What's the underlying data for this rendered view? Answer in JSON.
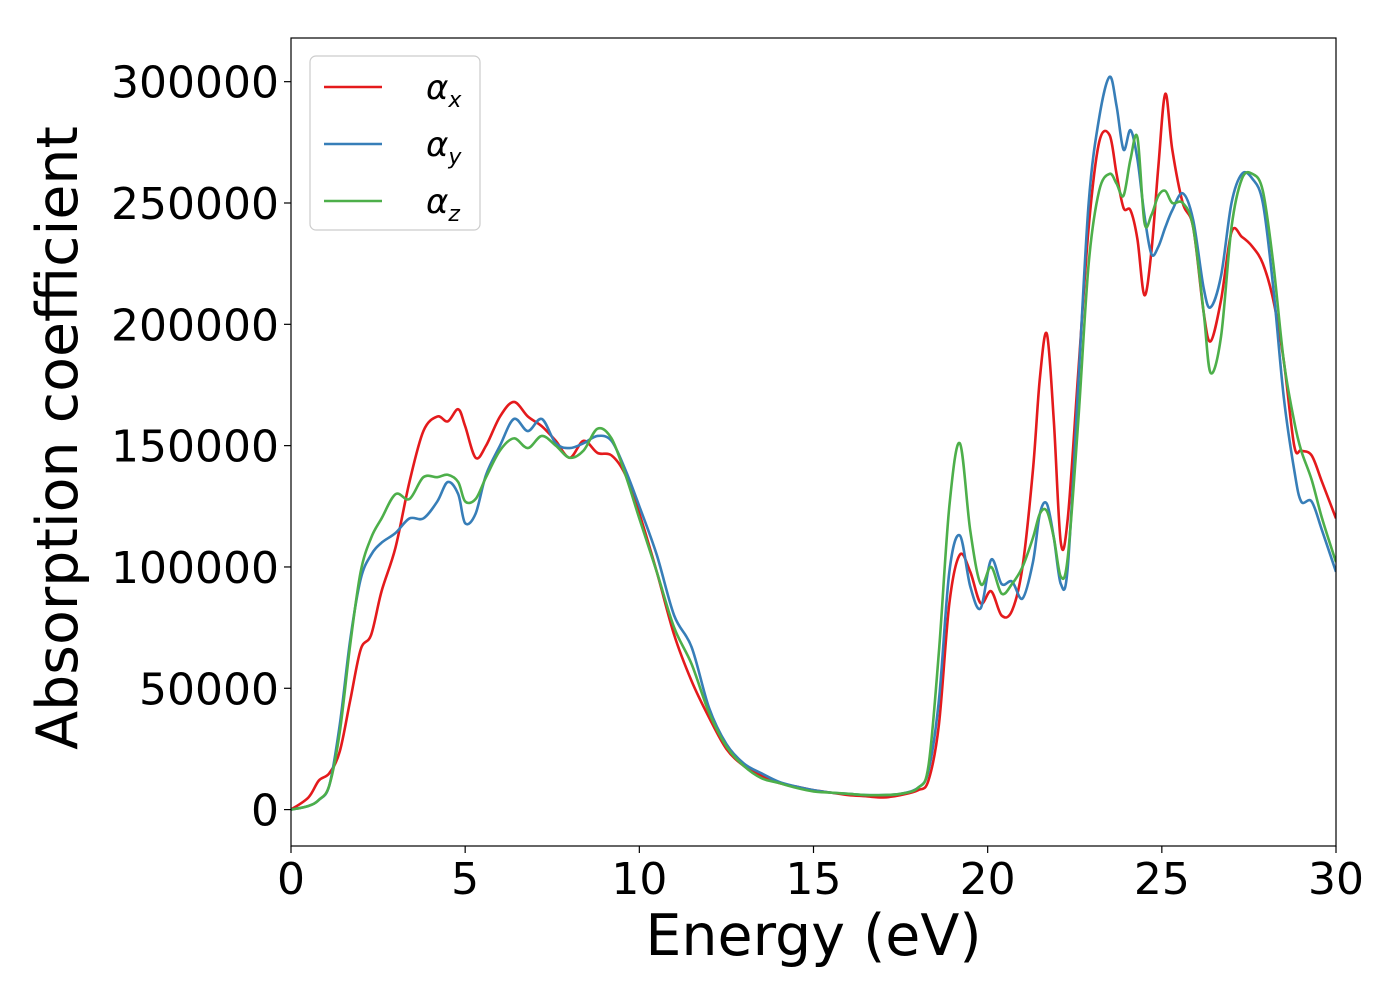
{
  "chart_data": {
    "type": "line",
    "xlabel": "Energy (eV)",
    "ylabel": "Absorption coefficient",
    "xlim": [
      0,
      30
    ],
    "ylim": [
      -15000,
      318000
    ],
    "xticks": [
      "0",
      "5",
      "10",
      "15",
      "20",
      "25",
      "30"
    ],
    "yticks": [
      "0",
      "50000",
      "100000",
      "150000",
      "200000",
      "250000",
      "300000"
    ],
    "grid": false,
    "legend_position": "top-left",
    "series": [
      {
        "name": "α",
        "subscript": "x",
        "color": "#e41a1c",
        "x": [
          0,
          0.5,
          0.8,
          1.1,
          1.4,
          1.7,
          2.0,
          2.3,
          2.6,
          3.0,
          3.4,
          3.8,
          4.2,
          4.5,
          4.8,
          5.0,
          5.3,
          5.6,
          6.0,
          6.4,
          6.8,
          7.2,
          7.6,
          8.0,
          8.4,
          8.8,
          9.2,
          9.6,
          10.0,
          10.5,
          11.0,
          11.5,
          12.0,
          12.5,
          13.0,
          13.5,
          14.0,
          14.5,
          15.0,
          15.5,
          16.0,
          16.5,
          17.0,
          17.5,
          18.0,
          18.3,
          18.6,
          18.9,
          19.2,
          19.5,
          19.8,
          20.1,
          20.4,
          20.7,
          21.0,
          21.3,
          21.5,
          21.7,
          21.9,
          22.1,
          22.3,
          22.6,
          22.9,
          23.2,
          23.5,
          23.7,
          23.9,
          24.1,
          24.3,
          24.5,
          24.7,
          24.9,
          25.1,
          25.3,
          25.6,
          25.9,
          26.2,
          26.4,
          26.7,
          27.0,
          27.3,
          27.6,
          27.9,
          28.2,
          28.5,
          28.8,
          29.0,
          29.3,
          29.6,
          30.0
        ],
        "y": [
          0,
          5000,
          12000,
          15000,
          24000,
          45000,
          66000,
          72000,
          90000,
          108000,
          135000,
          156000,
          162000,
          160000,
          165000,
          158000,
          145000,
          150000,
          162000,
          168000,
          162000,
          158000,
          152000,
          145000,
          152000,
          147000,
          146000,
          138000,
          122000,
          98000,
          72000,
          53000,
          38000,
          25000,
          18000,
          14000,
          11000,
          9500,
          8000,
          7000,
          6000,
          5500,
          5000,
          6000,
          8000,
          12000,
          35000,
          85000,
          105000,
          98000,
          85000,
          90000,
          80000,
          82000,
          100000,
          140000,
          178000,
          196000,
          160000,
          110000,
          120000,
          180000,
          240000,
          275000,
          278000,
          262000,
          248000,
          247000,
          235000,
          212000,
          230000,
          265000,
          295000,
          272000,
          250000,
          240000,
          205000,
          193000,
          210000,
          238000,
          236000,
          232000,
          225000,
          210000,
          185000,
          150000,
          148000,
          146000,
          135000,
          120000
        ]
      },
      {
        "name": "α",
        "subscript": "y",
        "color": "#377eb8",
        "x": [
          0,
          0.5,
          0.8,
          1.1,
          1.4,
          1.7,
          2.0,
          2.3,
          2.6,
          3.0,
          3.4,
          3.8,
          4.2,
          4.5,
          4.8,
          5.0,
          5.3,
          5.6,
          6.0,
          6.4,
          6.8,
          7.2,
          7.6,
          8.0,
          8.4,
          8.8,
          9.2,
          9.6,
          10.0,
          10.5,
          11.0,
          11.5,
          12.0,
          12.5,
          13.0,
          13.5,
          14.0,
          14.5,
          15.0,
          15.5,
          16.0,
          16.5,
          17.0,
          17.5,
          18.0,
          18.3,
          18.6,
          18.9,
          19.2,
          19.5,
          19.8,
          20.1,
          20.4,
          20.7,
          21.0,
          21.3,
          21.5,
          21.7,
          21.9,
          22.1,
          22.3,
          22.6,
          22.9,
          23.2,
          23.5,
          23.7,
          23.9,
          24.1,
          24.3,
          24.5,
          24.7,
          24.9,
          25.1,
          25.3,
          25.6,
          25.9,
          26.2,
          26.4,
          26.7,
          27.0,
          27.3,
          27.6,
          27.9,
          28.2,
          28.5,
          28.8,
          29.0,
          29.3,
          29.6,
          30.0
        ],
        "y": [
          0,
          1500,
          4000,
          10000,
          35000,
          70000,
          95000,
          105000,
          110000,
          114000,
          120000,
          120000,
          127000,
          135000,
          130000,
          118000,
          122000,
          138000,
          150000,
          161000,
          156000,
          161000,
          151000,
          149000,
          151000,
          154000,
          152000,
          140000,
          125000,
          105000,
          80000,
          67000,
          42000,
          27000,
          19000,
          15000,
          11500,
          9500,
          8000,
          7000,
          6500,
          6000,
          6000,
          6500,
          9000,
          16000,
          45000,
          98000,
          113000,
          92000,
          83000,
          103000,
          93000,
          94000,
          87000,
          102000,
          122000,
          126000,
          112000,
          93000,
          100000,
          175000,
          250000,
          285000,
          302000,
          290000,
          272000,
          280000,
          268000,
          245000,
          229000,
          232000,
          240000,
          247000,
          254000,
          243000,
          215000,
          207000,
          220000,
          250000,
          262000,
          260000,
          250000,
          215000,
          170000,
          140000,
          127000,
          127000,
          115000,
          98000
        ]
      },
      {
        "name": "α",
        "subscript": "z",
        "color": "#4daf4a",
        "x": [
          0,
          0.5,
          0.8,
          1.1,
          1.4,
          1.7,
          2.0,
          2.3,
          2.6,
          3.0,
          3.4,
          3.8,
          4.2,
          4.5,
          4.8,
          5.0,
          5.3,
          5.6,
          6.0,
          6.4,
          6.8,
          7.2,
          7.6,
          8.0,
          8.4,
          8.8,
          9.2,
          9.6,
          10.0,
          10.5,
          11.0,
          11.5,
          12.0,
          12.5,
          13.0,
          13.5,
          14.0,
          14.5,
          15.0,
          15.5,
          16.0,
          16.5,
          17.0,
          17.5,
          18.0,
          18.3,
          18.6,
          18.9,
          19.2,
          19.5,
          19.8,
          20.1,
          20.4,
          20.7,
          21.0,
          21.3,
          21.5,
          21.7,
          21.9,
          22.1,
          22.3,
          22.6,
          22.9,
          23.2,
          23.5,
          23.7,
          23.9,
          24.1,
          24.3,
          24.5,
          24.7,
          24.9,
          25.1,
          25.3,
          25.6,
          25.9,
          26.2,
          26.4,
          26.7,
          27.0,
          27.3,
          27.6,
          27.9,
          28.2,
          28.5,
          28.8,
          29.0,
          29.3,
          29.6,
          30.0
        ],
        "y": [
          0,
          1500,
          4000,
          10000,
          32000,
          68000,
          98000,
          112000,
          120000,
          130000,
          128000,
          137000,
          137000,
          138000,
          135000,
          127000,
          128000,
          137000,
          148000,
          153000,
          149000,
          154000,
          150000,
          145000,
          148000,
          157000,
          153000,
          138000,
          120000,
          98000,
          75000,
          60000,
          40000,
          26000,
          18000,
          13000,
          11000,
          9000,
          7500,
          7000,
          6500,
          6000,
          6000,
          6500,
          9000,
          18000,
          65000,
          125000,
          151000,
          115000,
          93000,
          100000,
          89000,
          93000,
          100000,
          112000,
          122000,
          123000,
          112000,
          96000,
          104000,
          160000,
          225000,
          255000,
          262000,
          258000,
          253000,
          268000,
          277000,
          242000,
          245000,
          253000,
          255000,
          250000,
          250000,
          240000,
          205000,
          180000,
          195000,
          240000,
          260000,
          262000,
          255000,
          225000,
          185000,
          160000,
          148000,
          136000,
          120000,
          102000
        ]
      }
    ]
  }
}
